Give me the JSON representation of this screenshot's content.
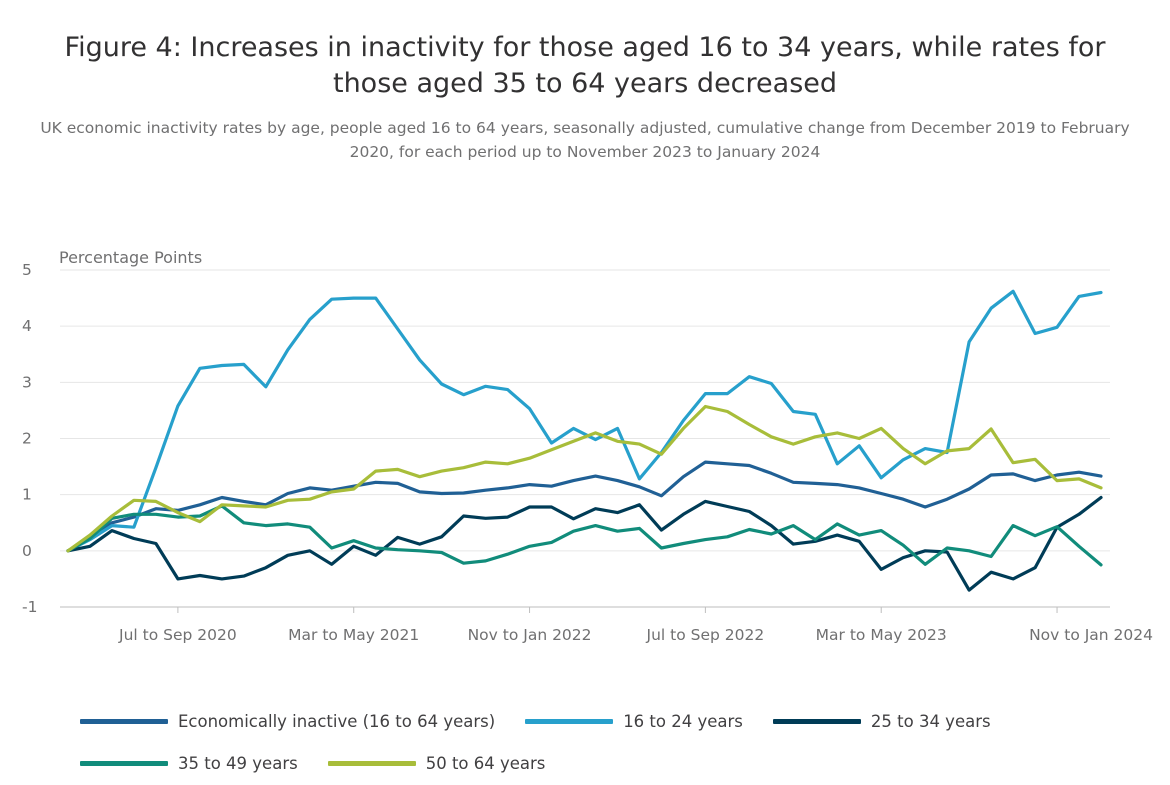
{
  "title": "Figure 4: Increases in inactivity for those aged 16 to 34 years, while rates for those aged 35 to 64 years decreased",
  "subtitle": "UK economic inactivity rates by age, people aged 16 to 64 years, seasonally adjusted, cumulative change from December 2019 to February 2020, for each period up to November 2023 to January 2024",
  "chart_data": {
    "type": "line",
    "ylabel": "Percentage Points",
    "xlabel": "",
    "ylim": [
      -1,
      5
    ],
    "yticks": [
      5,
      4,
      3,
      2,
      1,
      0,
      -1
    ],
    "gridlines": "horizontal",
    "legend_position": "bottom",
    "x_tick_labels": [
      {
        "index": 5,
        "label": "Jul to Sep 2020"
      },
      {
        "index": 13,
        "label": "Mar to May 2021"
      },
      {
        "index": 21,
        "label": "Nov to Jan 2022"
      },
      {
        "index": 29,
        "label": "Jul to Sep 2022"
      },
      {
        "index": 37,
        "label": "Mar to May 2023"
      },
      {
        "index": 45,
        "label": "Nov to Jan 2024"
      }
    ],
    "series": [
      {
        "name": "Economically inactive (16 to 64 years)",
        "color": "#206095",
        "values": [
          0,
          0.22,
          0.5,
          0.6,
          0.75,
          0.72,
          0.82,
          0.95,
          0.88,
          0.82,
          1.02,
          1.12,
          1.08,
          1.15,
          1.22,
          1.2,
          1.05,
          1.02,
          1.03,
          1.08,
          1.12,
          1.18,
          1.15,
          1.25,
          1.33,
          1.25,
          1.14,
          0.98,
          1.32,
          1.58,
          1.55,
          1.52,
          1.38,
          1.22,
          1.2,
          1.18,
          1.12,
          1.02,
          0.92,
          0.78,
          0.92,
          1.1,
          1.35,
          1.37,
          1.25,
          1.35,
          1.4,
          1.33
        ]
      },
      {
        "name": "16 to 24 years",
        "color": "#27a0cc",
        "values": [
          0,
          0.2,
          0.45,
          0.42,
          1.48,
          2.58,
          3.25,
          3.3,
          3.32,
          2.92,
          3.58,
          4.12,
          4.48,
          4.5,
          4.5,
          3.95,
          3.4,
          2.97,
          2.78,
          2.93,
          2.87,
          2.53,
          1.92,
          2.18,
          1.98,
          2.18,
          1.28,
          1.75,
          2.32,
          2.8,
          2.8,
          3.1,
          2.98,
          2.48,
          2.43,
          1.55,
          1.87,
          1.3,
          1.62,
          1.82,
          1.75,
          3.72,
          4.32,
          4.62,
          3.87,
          3.98,
          4.53,
          4.6
        ]
      },
      {
        "name": "25 to 34 years",
        "color": "#003c57",
        "values": [
          0,
          0.08,
          0.36,
          0.22,
          0.13,
          -0.5,
          -0.44,
          -0.5,
          -0.45,
          -0.3,
          -0.08,
          0,
          -0.24,
          0.08,
          -0.08,
          0.24,
          0.12,
          0.25,
          0.62,
          0.58,
          0.6,
          0.78,
          0.78,
          0.57,
          0.75,
          0.68,
          0.82,
          0.37,
          0.65,
          0.88,
          0.79,
          0.7,
          0.45,
          0.12,
          0.17,
          0.28,
          0.17,
          -0.33,
          -0.12,
          0,
          -0.02,
          -0.7,
          -0.38,
          -0.5,
          -0.3,
          0.42,
          0.65,
          0.95
        ]
      },
      {
        "name": "35 to 49 years",
        "color": "#118c7b",
        "values": [
          0,
          0.22,
          0.58,
          0.65,
          0.65,
          0.6,
          0.62,
          0.8,
          0.5,
          0.45,
          0.48,
          0.42,
          0.05,
          0.18,
          0.05,
          0.02,
          0,
          -0.03,
          -0.22,
          -0.18,
          -0.06,
          0.08,
          0.15,
          0.35,
          0.45,
          0.35,
          0.4,
          0.05,
          0.13,
          0.2,
          0.25,
          0.38,
          0.3,
          0.45,
          0.2,
          0.48,
          0.28,
          0.36,
          0.1,
          -0.24,
          0.05,
          0,
          -0.1,
          0.45,
          0.27,
          0.43,
          0.08,
          -0.25
        ]
      },
      {
        "name": "50 to 64 years",
        "color": "#a8bd3a",
        "values": [
          0,
          0.28,
          0.62,
          0.9,
          0.88,
          0.68,
          0.52,
          0.82,
          0.8,
          0.78,
          0.9,
          0.92,
          1.05,
          1.1,
          1.42,
          1.45,
          1.32,
          1.42,
          1.48,
          1.58,
          1.55,
          1.65,
          1.8,
          1.95,
          2.1,
          1.95,
          1.9,
          1.72,
          2.18,
          2.57,
          2.48,
          2.25,
          2.03,
          1.9,
          2.03,
          2.1,
          2.0,
          2.18,
          1.82,
          1.55,
          1.78,
          1.82,
          2.17,
          1.57,
          1.63,
          1.25,
          1.28,
          1.12
        ]
      }
    ]
  }
}
